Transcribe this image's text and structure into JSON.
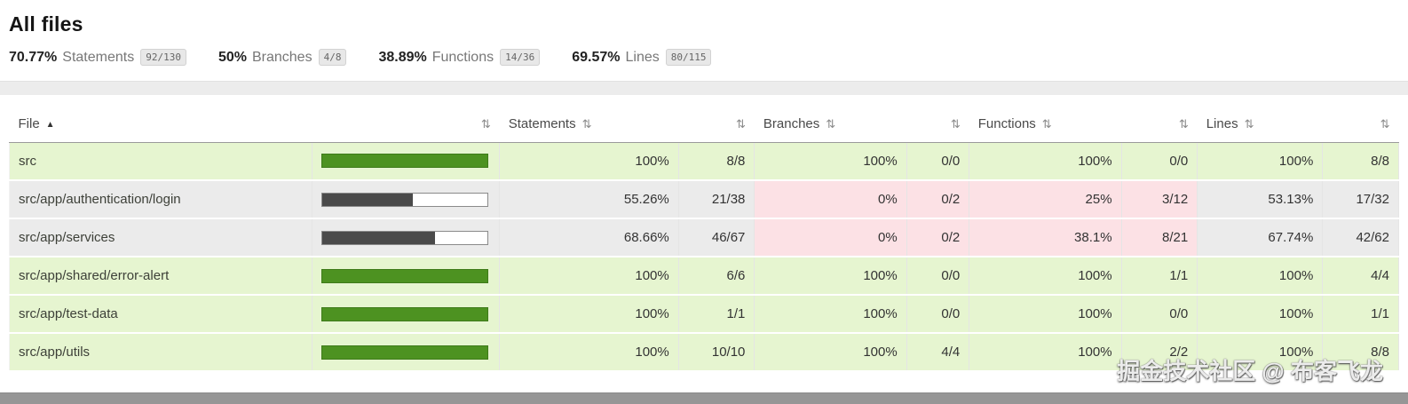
{
  "page": {
    "title": "All files"
  },
  "summary": [
    {
      "pct": "70.77%",
      "label": "Statements",
      "fraction": "92/130"
    },
    {
      "pct": "50%",
      "label": "Branches",
      "fraction": "4/8"
    },
    {
      "pct": "38.89%",
      "label": "Functions",
      "fraction": "14/36"
    },
    {
      "pct": "69.57%",
      "label": "Lines",
      "fraction": "80/115"
    }
  ],
  "table": {
    "headers": {
      "file": "File",
      "statements": "Statements",
      "branches": "Branches",
      "functions": "Functions",
      "lines": "Lines"
    },
    "sort_icon": "⇅",
    "sort_active_icon": "▲",
    "rows": [
      {
        "file": "src",
        "level": "high",
        "bar": {
          "type": "green",
          "pct": 100
        },
        "statements": {
          "pct": "100%",
          "ratio": "8/8",
          "level": "high"
        },
        "branches": {
          "pct": "100%",
          "ratio": "0/0",
          "level": "high"
        },
        "functions": {
          "pct": "100%",
          "ratio": "0/0",
          "level": "high"
        },
        "lines": {
          "pct": "100%",
          "ratio": "8/8",
          "level": "high"
        }
      },
      {
        "file": "src/app/authentication/login",
        "level": "medium",
        "bar": {
          "type": "dark",
          "pct": 55.26
        },
        "statements": {
          "pct": "55.26%",
          "ratio": "21/38",
          "level": "medium"
        },
        "branches": {
          "pct": "0%",
          "ratio": "0/2",
          "level": "low"
        },
        "functions": {
          "pct": "25%",
          "ratio": "3/12",
          "level": "low"
        },
        "lines": {
          "pct": "53.13%",
          "ratio": "17/32",
          "level": "medium"
        }
      },
      {
        "file": "src/app/services",
        "level": "medium",
        "bar": {
          "type": "dark",
          "pct": 68.66
        },
        "statements": {
          "pct": "68.66%",
          "ratio": "46/67",
          "level": "medium"
        },
        "branches": {
          "pct": "0%",
          "ratio": "0/2",
          "level": "low"
        },
        "functions": {
          "pct": "38.1%",
          "ratio": "8/21",
          "level": "low"
        },
        "lines": {
          "pct": "67.74%",
          "ratio": "42/62",
          "level": "medium"
        }
      },
      {
        "file": "src/app/shared/error-alert",
        "level": "high",
        "bar": {
          "type": "green",
          "pct": 100
        },
        "statements": {
          "pct": "100%",
          "ratio": "6/6",
          "level": "high"
        },
        "branches": {
          "pct": "100%",
          "ratio": "0/0",
          "level": "high"
        },
        "functions": {
          "pct": "100%",
          "ratio": "1/1",
          "level": "high"
        },
        "lines": {
          "pct": "100%",
          "ratio": "4/4",
          "level": "high"
        }
      },
      {
        "file": "src/app/test-data",
        "level": "high",
        "bar": {
          "type": "green",
          "pct": 100
        },
        "statements": {
          "pct": "100%",
          "ratio": "1/1",
          "level": "high"
        },
        "branches": {
          "pct": "100%",
          "ratio": "0/0",
          "level": "high"
        },
        "functions": {
          "pct": "100%",
          "ratio": "0/0",
          "level": "high"
        },
        "lines": {
          "pct": "100%",
          "ratio": "1/1",
          "level": "high"
        }
      },
      {
        "file": "src/app/utils",
        "level": "high",
        "bar": {
          "type": "green",
          "pct": 100
        },
        "statements": {
          "pct": "100%",
          "ratio": "10/10",
          "level": "high"
        },
        "branches": {
          "pct": "100%",
          "ratio": "4/4",
          "level": "high"
        },
        "functions": {
          "pct": "100%",
          "ratio": "2/2",
          "level": "high"
        },
        "lines": {
          "pct": "100%",
          "ratio": "8/8",
          "level": "high"
        }
      }
    ]
  },
  "watermark": "掘金技术社区 @ 布客飞龙",
  "colors": {
    "green_fill": "#4d9221",
    "dark_fill": "#4a4a4a",
    "high_bg": "#e6f5d0",
    "medium_bg": "#ebebeb",
    "low_bg": "#fce1e5"
  }
}
